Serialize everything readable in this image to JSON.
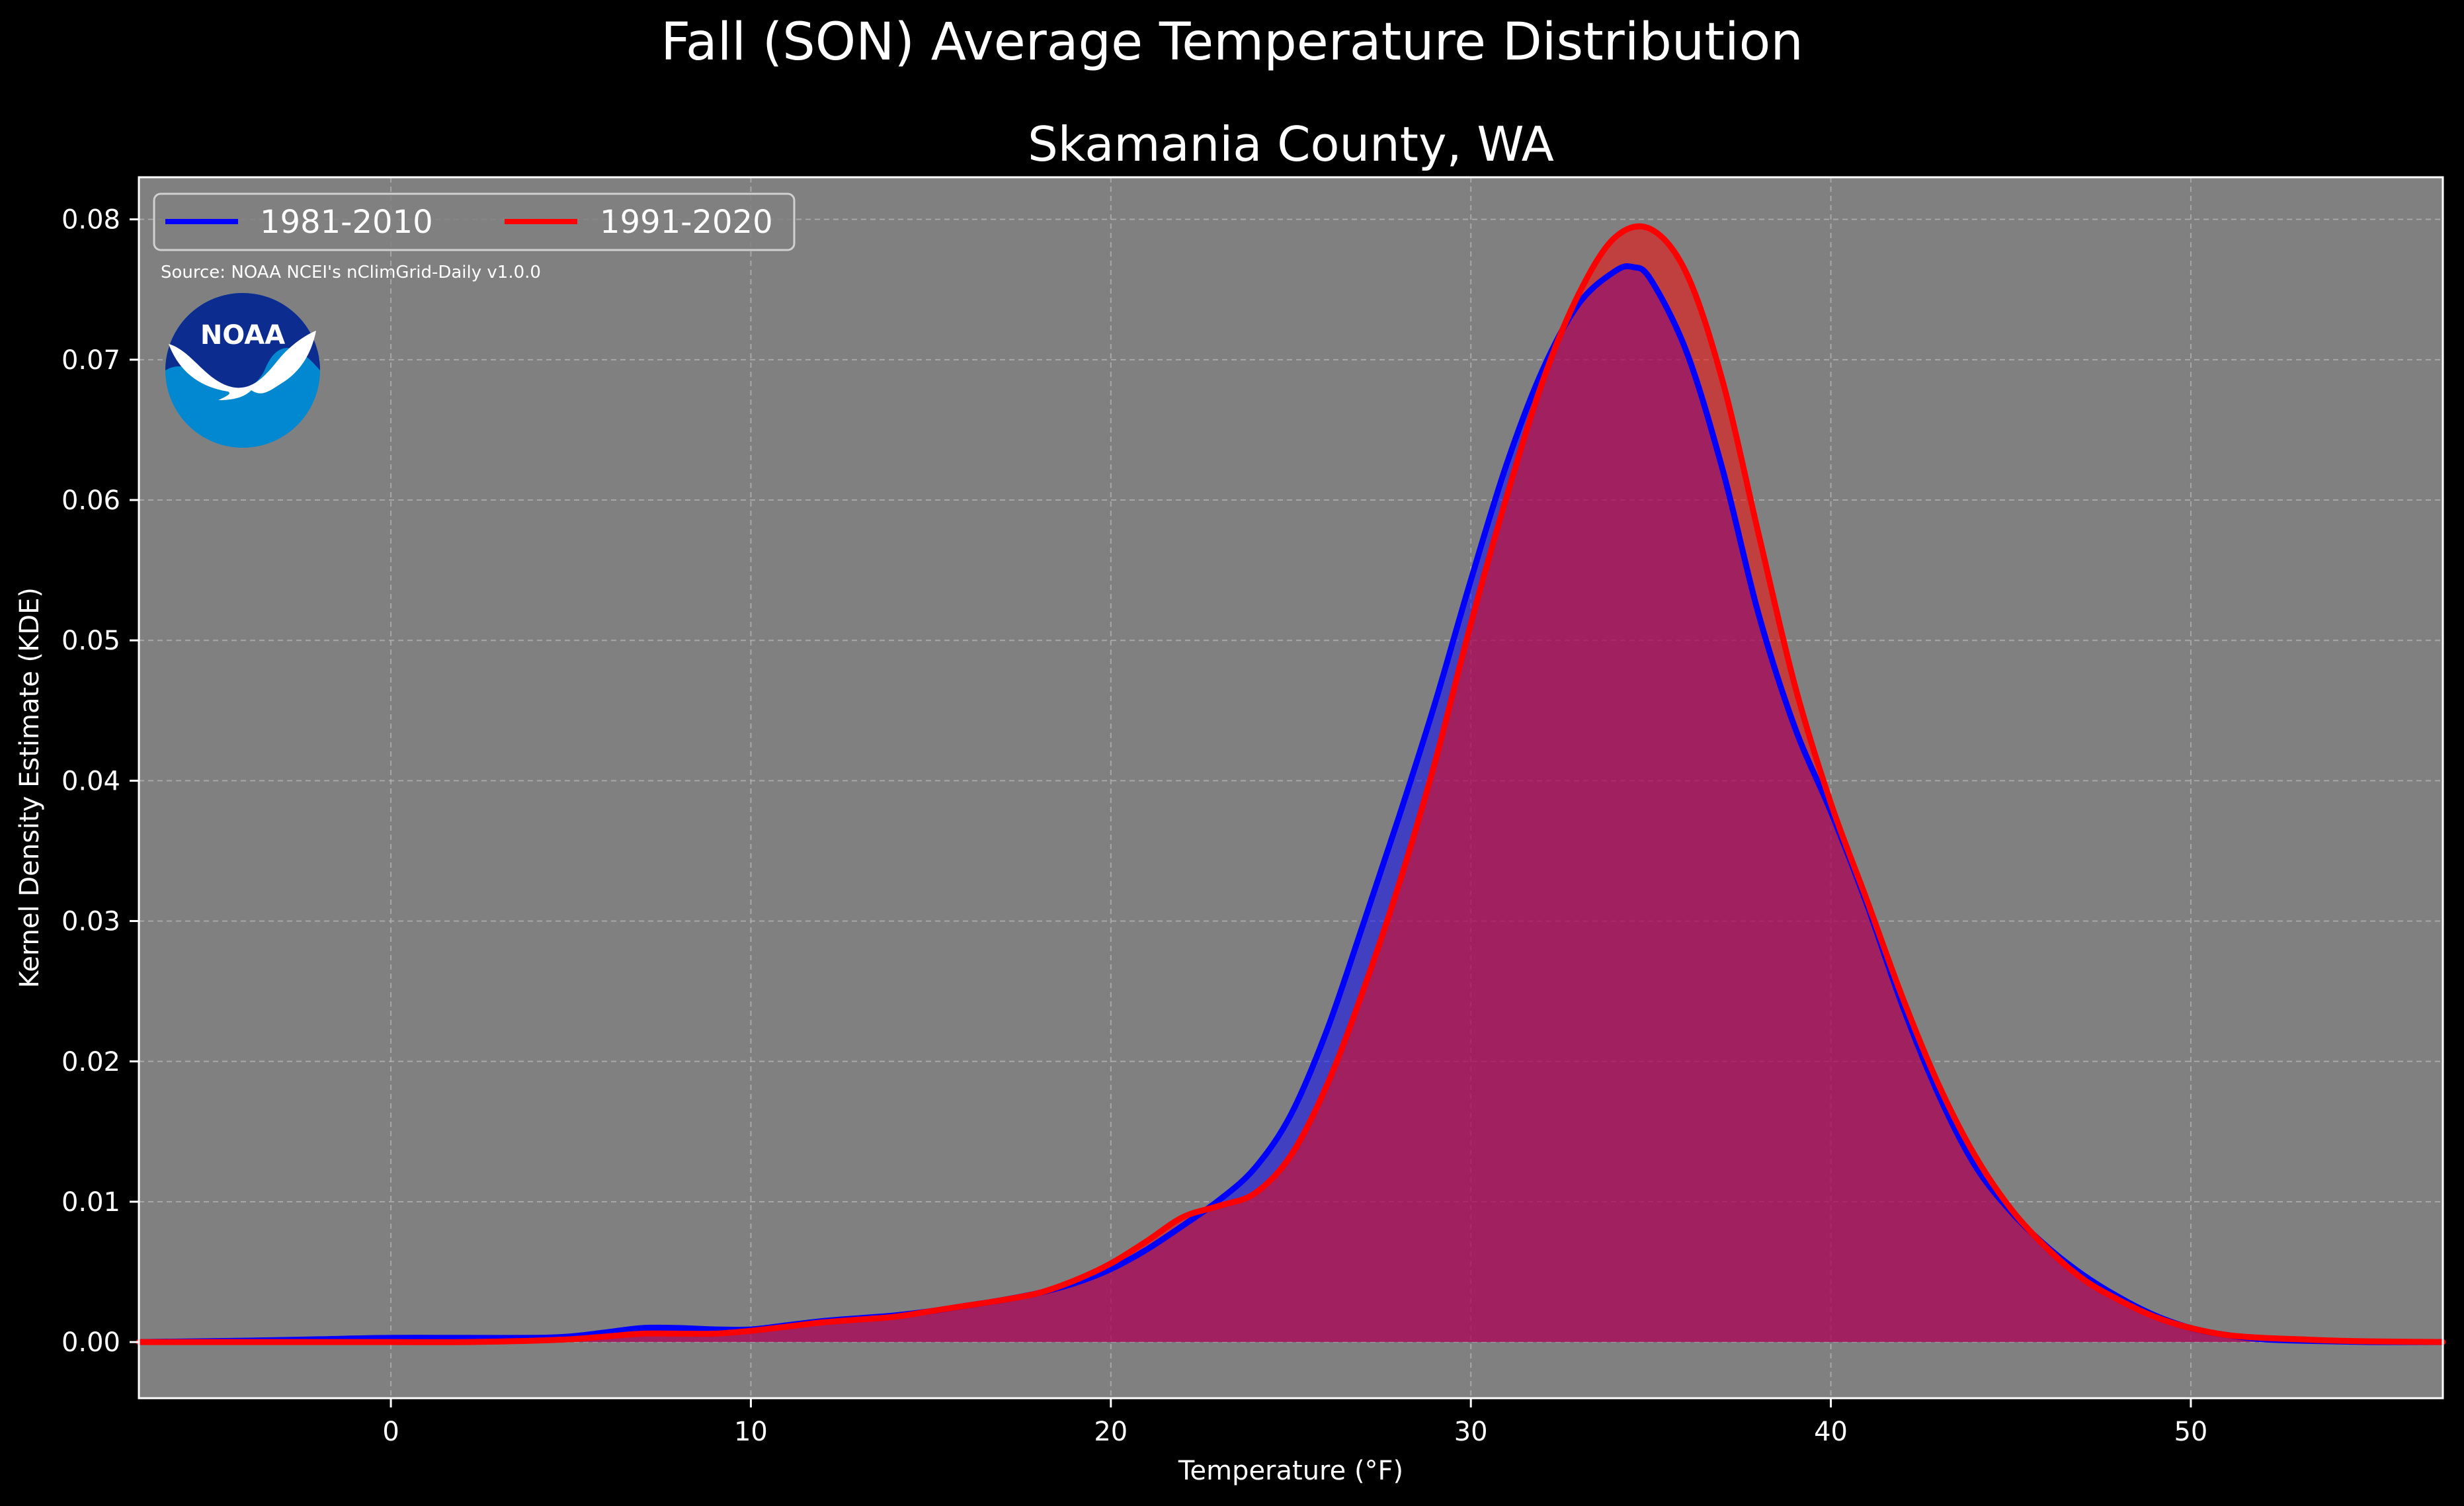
{
  "page": {
    "suptitle": "Fall (SON) Average Temperature Distribution",
    "source": "Source: NOAA NCEI's nClimGrid-Daily v1.0.0",
    "logo_text": "NOAA"
  },
  "colors": {
    "background": "#000000",
    "plot_background": "#808080",
    "series_1981": "#0000ff",
    "series_1991": "#ff0000",
    "grid": "#b8b8b8",
    "text": "#ffffff"
  },
  "chart_data": {
    "type": "area",
    "title": "Skamania County, WA",
    "xlabel": "Temperature (°F)",
    "ylabel": "Kernel Density Estimate (KDE)",
    "xlim": [
      -7,
      57
    ],
    "ylim": [
      -0.004,
      0.083
    ],
    "xticks": [
      "0",
      "10",
      "20",
      "30",
      "40",
      "50"
    ],
    "yticks": [
      "0.00",
      "0.01",
      "0.02",
      "0.03",
      "0.04",
      "0.05",
      "0.06",
      "0.07",
      "0.08"
    ],
    "grid": true,
    "legend_position": "top-left",
    "series": [
      {
        "name": "1981-2010",
        "color": "#0000ff",
        "x": [
          -7,
          -4,
          -2,
          0,
          2,
          4,
          5,
          6,
          7,
          8,
          9,
          10,
          11,
          12,
          13,
          14,
          15,
          16,
          17,
          18,
          19,
          20,
          21,
          22,
          23,
          24,
          25,
          26,
          27,
          28,
          29,
          30,
          31,
          32,
          33,
          34,
          34.5,
          35,
          36,
          37,
          38,
          39,
          40,
          41,
          42,
          43,
          44,
          45,
          46,
          47,
          48,
          49,
          50,
          51,
          52,
          53,
          54,
          55,
          57
        ],
        "values": [
          0,
          0.0001,
          0.0002,
          0.0003,
          0.0003,
          0.0003,
          0.0004,
          0.0007,
          0.001,
          0.001,
          0.0009,
          0.0009,
          0.0012,
          0.0015,
          0.0017,
          0.0019,
          0.0022,
          0.0026,
          0.003,
          0.0035,
          0.0042,
          0.0052,
          0.0066,
          0.0083,
          0.0101,
          0.0124,
          0.0162,
          0.0222,
          0.0297,
          0.0374,
          0.0455,
          0.0543,
          0.0626,
          0.0693,
          0.074,
          0.0763,
          0.0766,
          0.0757,
          0.0705,
          0.0621,
          0.0518,
          0.0438,
          0.0378,
          0.0312,
          0.0239,
          0.0176,
          0.0126,
          0.0093,
          0.0068,
          0.0048,
          0.0032,
          0.0019,
          0.001,
          0.0005,
          0.0002,
          0.0001,
          5e-05,
          0,
          0
        ]
      },
      {
        "name": "1991-2020",
        "color": "#ff0000",
        "x": [
          -7,
          -4,
          -2,
          0,
          2,
          4,
          5,
          6,
          7,
          8,
          9,
          10,
          11,
          12,
          13,
          14,
          15,
          16,
          17,
          18,
          19,
          20,
          21,
          22,
          23,
          24,
          25,
          26,
          27,
          28,
          29,
          30,
          31,
          32,
          33,
          34,
          35,
          36,
          37,
          38,
          39,
          40,
          41,
          42,
          43,
          44,
          45,
          46,
          47,
          48,
          49,
          50,
          51,
          52,
          53,
          54,
          55,
          57
        ],
        "values": [
          0,
          0,
          0,
          0,
          0,
          0.0001,
          0.0002,
          0.0004,
          0.0006,
          0.0006,
          0.0006,
          0.0008,
          0.0011,
          0.0014,
          0.0016,
          0.0018,
          0.0022,
          0.0026,
          0.003,
          0.0035,
          0.0044,
          0.0056,
          0.0072,
          0.0089,
          0.0097,
          0.0106,
          0.0133,
          0.0183,
          0.025,
          0.0326,
          0.0413,
          0.0512,
          0.0603,
          0.0685,
          0.0747,
          0.0787,
          0.0793,
          0.0761,
          0.0684,
          0.0575,
          0.0468,
          0.0384,
          0.0315,
          0.0245,
          0.0183,
          0.0133,
          0.0095,
          0.0067,
          0.0045,
          0.003,
          0.0018,
          0.001,
          0.0005,
          0.0003,
          0.0002,
          0.0001,
          5e-05,
          0
        ]
      }
    ]
  }
}
